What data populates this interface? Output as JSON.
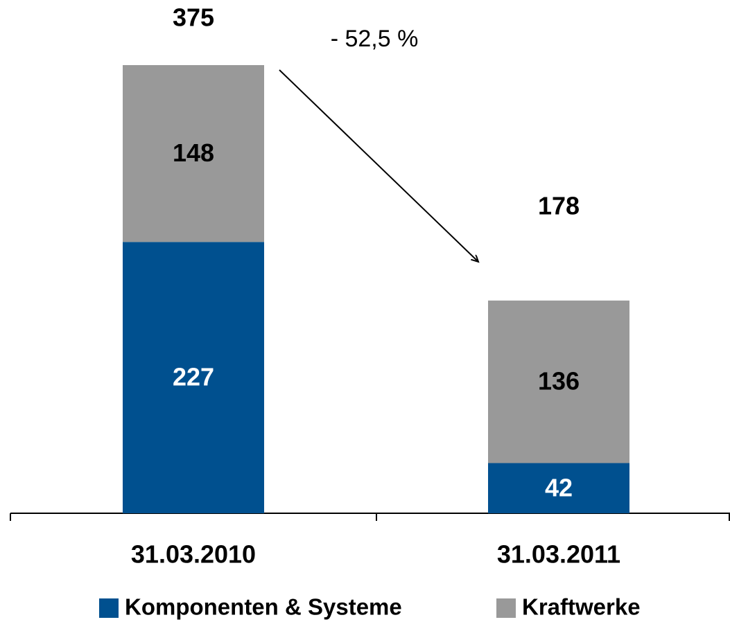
{
  "chart_data": {
    "type": "stacked_bar",
    "categories": [
      "31.03.2010",
      "31.03.2011"
    ],
    "series": [
      {
        "name": "Komponenten & Systeme",
        "color": "#00508f",
        "values": [
          227,
          42
        ]
      },
      {
        "name": "Kraftwerke",
        "color": "#999999",
        "values": [
          148,
          136
        ]
      }
    ],
    "totals": [
      375,
      178
    ],
    "annotation": "- 52,5 %"
  }
}
